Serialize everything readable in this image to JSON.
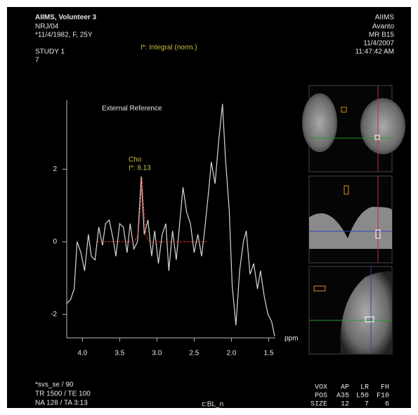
{
  "header": {
    "left": [
      "AIIMS, Volunteer 3",
      "NRJ/04",
      "*11/4/1982, F, 25Y",
      "STUDY 1",
      "7"
    ],
    "right": [
      "AIIMS",
      "Avanto",
      "MR B15",
      "11/4/2007",
      "11:47:42 AM"
    ],
    "integral": "I*: Integral (norm.)"
  },
  "footer": {
    "left": [
      "*svs_se / 90",
      "TR 1500 / TE 100",
      "NA 128 / TA 3:13"
    ],
    "center": "c:BL_n",
    "table": [
      [
        "VOX",
        "AP",
        "LR",
        "FH"
      ],
      [
        "POS",
        "A35",
        "L50",
        "F10"
      ],
      [
        "SIZE",
        "12",
        "7",
        "6"
      ]
    ]
  },
  "chart_data": {
    "type": "line",
    "x_label": "ppm",
    "annotations": [
      "External Reference",
      "Cho",
      "I*: 8.13"
    ],
    "xlim": [
      4.21,
      1.41
    ],
    "ylim": [
      -2.65,
      3.9
    ],
    "xticks": [
      {
        "value": 4,
        "label": "4.0"
      },
      3.5,
      {
        "value": 3,
        "label": "3.0"
      },
      2.5,
      {
        "value": 2,
        "label": "2.0"
      },
      1.5
    ],
    "yticks": [
      -2,
      0,
      2
    ],
    "series": [
      {
        "color": "#d8d8d8",
        "dashed": false,
        "x": [
          4.21,
          4.16,
          4.11,
          4.07,
          4.02,
          3.97,
          3.92,
          3.88,
          3.83,
          3.78,
          3.73,
          3.69,
          3.64,
          3.59,
          3.55,
          3.5,
          3.45,
          3.4,
          3.36,
          3.31,
          3.26,
          3.21,
          3.17,
          3.12,
          3.07,
          3.03,
          2.98,
          2.93,
          2.88,
          2.84,
          2.79,
          2.74,
          2.69,
          2.65,
          2.6,
          2.55,
          2.5,
          2.45,
          2.4,
          2.36,
          2.31,
          2.27,
          2.22,
          2.17,
          2.12,
          2.08,
          2.03,
          1.99,
          1.94,
          1.89,
          1.84,
          1.8,
          1.75,
          1.7,
          1.65,
          1.61,
          1.56,
          1.51,
          1.46,
          1.42
        ],
        "values": [
          -1.7,
          -1.6,
          -1.3,
          0.0,
          -0.3,
          -0.8,
          0.2,
          -0.4,
          -0.5,
          0.4,
          -0.1,
          0.5,
          0.6,
          0.1,
          -0.4,
          0.5,
          0.4,
          -0.3,
          0.5,
          -0.2,
          0.0,
          1.8,
          0.2,
          0.6,
          -0.4,
          0.3,
          -0.6,
          0.2,
          0.5,
          -0.8,
          0.3,
          -0.5,
          0.6,
          1.5,
          0.8,
          0.5,
          -0.3,
          0.2,
          -0.4,
          0.3,
          1.3,
          2.2,
          1.6,
          2.8,
          3.8,
          2.3,
          0.9,
          -1.2,
          -2.3,
          -0.8,
          0.0,
          0.3,
          -0.9,
          -0.6,
          -1.3,
          -0.8,
          -1.5,
          -2.0,
          -2.2,
          -2.6
        ]
      },
      {
        "color": "#e0302a",
        "dashed": true,
        "x": [
          3.8,
          3.3,
          3.25,
          3.22,
          3.2,
          3.18,
          3.15,
          3.1,
          2.33
        ],
        "values": [
          0,
          0,
          0.2,
          1.0,
          1.75,
          1.0,
          0.2,
          0,
          0
        ]
      }
    ]
  }
}
